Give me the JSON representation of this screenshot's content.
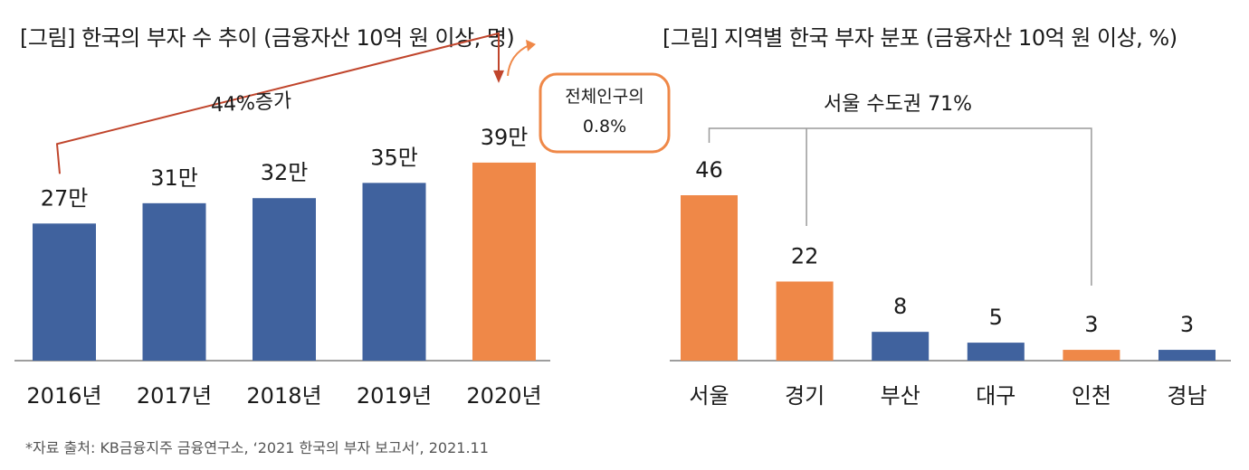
{
  "colors": {
    "blue": "#40629e",
    "orange": "#ef8848",
    "arrow": "#c0452c",
    "axis": "#7f7f7f",
    "bracket": "#9a9a9a"
  },
  "chart_data": [
    {
      "type": "bar",
      "title": "[그림] 한국의 부자 수 추이 (금융자산 10억 원 이상, 명)",
      "categories": [
        "2016년",
        "2017년",
        "2018년",
        "2019년",
        "2020년"
      ],
      "values": [
        27,
        31,
        32,
        35,
        39
      ],
      "data_labels": [
        "27만",
        "31만",
        "32만",
        "35만",
        "39만"
      ],
      "highlight": [
        false,
        false,
        false,
        false,
        true
      ],
      "ylim": [
        0,
        55
      ],
      "annotations": {
        "growth": "44%증가",
        "callout_line1": "전체인구의",
        "callout_line2": "0.8%"
      }
    },
    {
      "type": "bar",
      "title": "[그림] 지역별 한국 부자 분포 (금융자산 10억 원 이상, %)",
      "categories": [
        "서울",
        "경기",
        "부산",
        "대구",
        "인천",
        "경남"
      ],
      "values": [
        46,
        22,
        8,
        5,
        3,
        3
      ],
      "data_labels": [
        "46",
        "22",
        "8",
        "5",
        "3",
        "3"
      ],
      "highlight": [
        true,
        true,
        false,
        false,
        true,
        false
      ],
      "ylim": [
        0,
        50
      ],
      "annotations": {
        "capital_area": "서울 수도권 71%"
      }
    }
  ],
  "footnote": "*자료 출처: KB금융지주 금융연구소, ‘2021 한국의 부자 보고서’, 2021.11"
}
